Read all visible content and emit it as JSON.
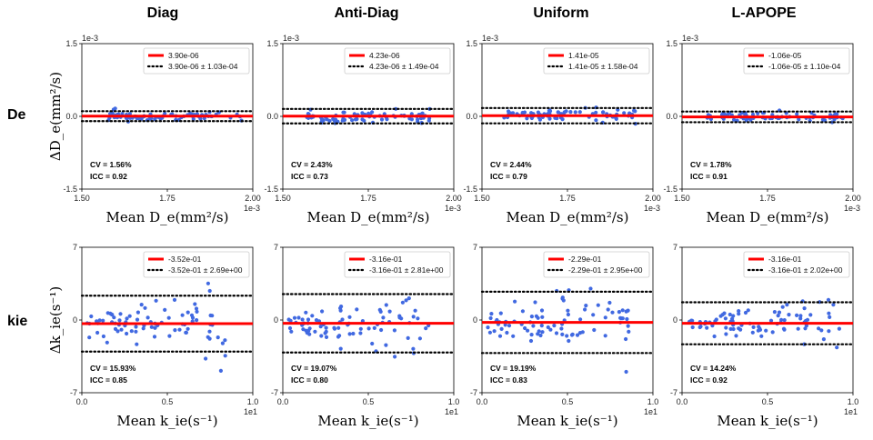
{
  "columns": [
    "Diag",
    "Anti-Diag",
    "Uniform",
    "L-APOPE"
  ],
  "rows": [
    "De",
    "kie"
  ],
  "y_labels": [
    "ΔD_e(mm²/s)",
    "Δk_ie(s⁻¹)"
  ],
  "x_labels": [
    "Mean D_e(mm²/s)",
    "Mean k_ie(s⁻¹)"
  ],
  "chart_data": [
    {
      "type": "scatter",
      "row": 0,
      "col": 0,
      "title": "Diag",
      "xlim": [
        1.5,
        2.0
      ],
      "ylim": [
        -1.5,
        1.5
      ],
      "xticks": [
        "1.50",
        "1.75",
        "2.00"
      ],
      "yticks": [
        "1.5",
        "0.0",
        "-1.5"
      ],
      "x_offset": "1e-3",
      "y_offset": "1e-3",
      "mean": 0.0039,
      "loa": 0.103,
      "legend": [
        "3.90e-06",
        "3.90e-06 ± 1.03e-04"
      ],
      "cv": "CV = 1.56%",
      "icc": "ICC = 0.92",
      "x_range": [
        1.57,
        1.97
      ],
      "spread": 0.045,
      "n": 75,
      "seed": 11
    },
    {
      "type": "scatter",
      "row": 0,
      "col": 1,
      "title": "Anti-Diag",
      "xlim": [
        1.5,
        2.0
      ],
      "ylim": [
        -1.5,
        1.5
      ],
      "xticks": [
        "1.50",
        "1.75",
        "2.00"
      ],
      "yticks": [
        "1.5",
        "0.0",
        "-1.5"
      ],
      "x_offset": "1e-3",
      "y_offset": "1e-3",
      "mean": 0.0042,
      "loa": 0.149,
      "legend": [
        "4.23e-06",
        "4.23e-06 ± 1.49e-04"
      ],
      "cv": "CV = 2.43%",
      "icc": "ICC = 0.73",
      "x_range": [
        1.56,
        1.93
      ],
      "spread": 0.065,
      "n": 75,
      "seed": 23
    },
    {
      "type": "scatter",
      "row": 0,
      "col": 2,
      "title": "Uniform",
      "xlim": [
        1.5,
        2.0
      ],
      "ylim": [
        -1.5,
        1.5
      ],
      "xticks": [
        "1.50",
        "1.75",
        "2.00"
      ],
      "yticks": [
        "1.5",
        "0.0",
        "-1.5"
      ],
      "x_offset": "1e-3",
      "y_offset": "1e-3",
      "mean": 0.0141,
      "loa": 0.158,
      "legend": [
        "1.41e-05",
        "1.41e-05 ± 1.58e-04"
      ],
      "cv": "CV = 2.44%",
      "icc": "ICC = 0.79",
      "x_range": [
        1.55,
        1.95
      ],
      "spread": 0.07,
      "n": 75,
      "seed": 37
    },
    {
      "type": "scatter",
      "row": 0,
      "col": 3,
      "title": "L-APOPE",
      "xlim": [
        1.5,
        2.0
      ],
      "ylim": [
        -1.5,
        1.5
      ],
      "xticks": [
        "1.50",
        "1.75",
        "2.00"
      ],
      "yticks": [
        "1.5",
        "0.0",
        "-1.5"
      ],
      "x_offset": "1e-3",
      "y_offset": "1e-3",
      "mean": -0.0106,
      "loa": 0.11,
      "legend": [
        "-1.06e-05",
        "-1.06e-05 ± 1.10e-04"
      ],
      "cv": "CV = 1.78%",
      "icc": "ICC = 0.91",
      "x_range": [
        1.57,
        1.97
      ],
      "spread": 0.045,
      "n": 75,
      "seed": 51
    },
    {
      "type": "scatter",
      "row": 1,
      "col": 0,
      "title": "Diag",
      "xlim": [
        0.0,
        1.0
      ],
      "ylim": [
        -7,
        7
      ],
      "xticks": [
        "0.0",
        "0.5",
        "1.0"
      ],
      "yticks": [
        "7",
        "0",
        "-7"
      ],
      "x_offset": "1e1",
      "y_offset": "",
      "mean": -0.352,
      "loa": 2.69,
      "legend": [
        "-3.52e-01",
        "-3.52e-01 ± 2.69e+00"
      ],
      "cv": "CV = 15.93%",
      "icc": "ICC = 0.85",
      "x_range": [
        0.02,
        0.86
      ],
      "spread": 1.5,
      "n": 85,
      "seed": 7
    },
    {
      "type": "scatter",
      "row": 1,
      "col": 1,
      "title": "Anti-Diag",
      "xlim": [
        0.0,
        1.0
      ],
      "ylim": [
        -7,
        7
      ],
      "xticks": [
        "0.0",
        "0.5",
        "1.0"
      ],
      "yticks": [
        "7",
        "0",
        "-7"
      ],
      "x_offset": "1e1",
      "y_offset": "",
      "mean": -0.316,
      "loa": 2.81,
      "legend": [
        "-3.16e-01",
        "-3.16e-01 ± 2.81e+00"
      ],
      "cv": "CV = 19.07%",
      "icc": "ICC = 0.80",
      "x_range": [
        0.02,
        0.88
      ],
      "spread": 1.5,
      "n": 85,
      "seed": 19
    },
    {
      "type": "scatter",
      "row": 1,
      "col": 2,
      "title": "Uniform",
      "xlim": [
        0.0,
        1.0
      ],
      "ylim": [
        -7,
        7
      ],
      "xticks": [
        "0.0",
        "0.5",
        "1.0"
      ],
      "yticks": [
        "7",
        "0",
        "-7"
      ],
      "x_offset": "1e1",
      "y_offset": "",
      "mean": -0.229,
      "loa": 2.95,
      "legend": [
        "-2.29e-01",
        "-2.29e-01 ± 2.95e+00"
      ],
      "cv": "CV = 19.19%",
      "icc": "ICC = 0.83",
      "x_range": [
        0.02,
        0.88
      ],
      "spread": 1.6,
      "n": 85,
      "seed": 29
    },
    {
      "type": "scatter",
      "row": 1,
      "col": 3,
      "title": "L-APOPE",
      "xlim": [
        0.0,
        1.0
      ],
      "ylim": [
        -7,
        7
      ],
      "xticks": [
        "0.0",
        "0.5",
        "1.0"
      ],
      "yticks": [
        "7",
        "0",
        "-7"
      ],
      "x_offset": "1e1",
      "y_offset": "",
      "mean": -0.316,
      "loa": 2.02,
      "legend": [
        "-3.16e-01",
        "-3.16e-01 ± 2.02e+00"
      ],
      "cv": "CV = 14.24%",
      "icc": "ICC = 0.92",
      "x_range": [
        0.02,
        0.92
      ],
      "spread": 1.05,
      "n": 85,
      "seed": 43
    }
  ],
  "colors": {
    "mean_line": "#ff0000",
    "points": "#4169e1",
    "loa_line": "#000000"
  }
}
